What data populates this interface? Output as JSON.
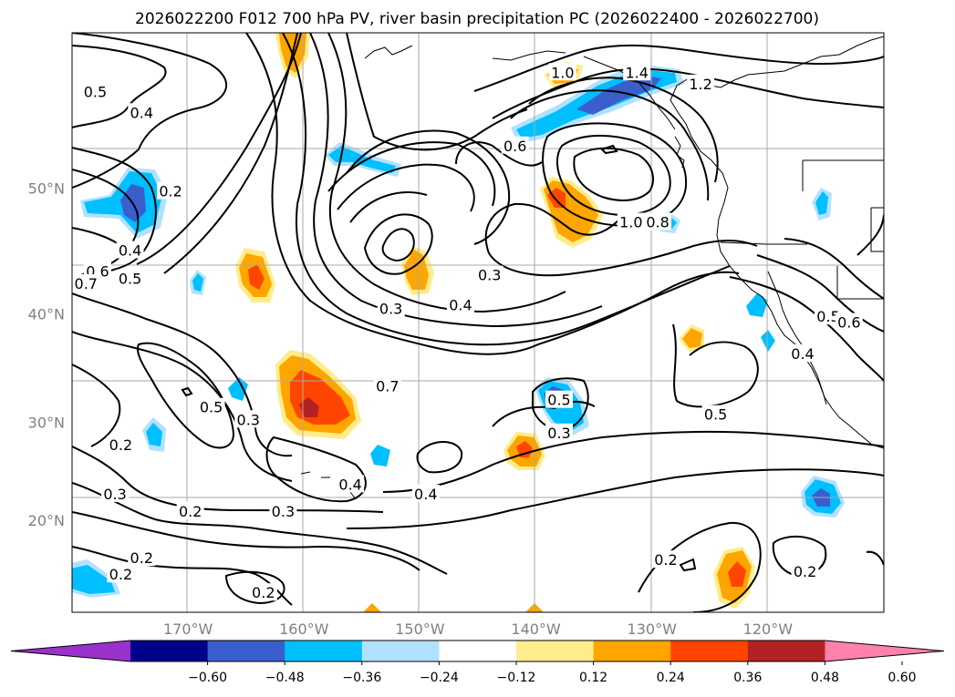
{
  "title": "2026022200 F012 700 hPa PV, river basin precipitation PC (2026022400 - 2026022700)",
  "map": {
    "projection": "Mercator",
    "lon_range": [
      -180,
      -110
    ],
    "lat_range": [
      10,
      60
    ],
    "lon_ticks": [
      {
        "lon": -170,
        "label": "170°W"
      },
      {
        "lon": -160,
        "label": "160°W"
      },
      {
        "lon": -150,
        "label": "150°W"
      },
      {
        "lon": -140,
        "label": "140°W"
      },
      {
        "lon": -130,
        "label": "130°W"
      },
      {
        "lon": -120,
        "label": "120°W"
      }
    ],
    "lat_ticks": [
      {
        "lat": 20,
        "label": "20°N"
      },
      {
        "lat": 30,
        "label": "30°N"
      },
      {
        "lat": 40,
        "label": "40°N"
      },
      {
        "lat": 50,
        "label": "50°N"
      }
    ],
    "grid": true
  },
  "contour_labels": [
    {
      "text": "0.5",
      "lon": -178.0,
      "lat": 56.5
    },
    {
      "text": "0.4",
      "lon": -174.0,
      "lat": 55.2
    },
    {
      "text": "0.2",
      "lon": -171.5,
      "lat": 49.8
    },
    {
      "text": "0.4",
      "lon": -175.0,
      "lat": 45.3
    },
    {
      "text": "0.6",
      "lon": -177.8,
      "lat": 43.6
    },
    {
      "text": "0.7",
      "lon": -178.8,
      "lat": 42.6
    },
    {
      "text": "0.5",
      "lon": -175.0,
      "lat": 43.0
    },
    {
      "text": "1.0",
      "lon": -137.7,
      "lat": 57.7
    },
    {
      "text": "1.4",
      "lon": -131.3,
      "lat": 57.7
    },
    {
      "text": "1.2",
      "lon": -125.8,
      "lat": 57.0
    },
    {
      "text": "0.6",
      "lon": -141.8,
      "lat": 53.0
    },
    {
      "text": "1.0",
      "lon": -131.8,
      "lat": 47.5
    },
    {
      "text": "0.8",
      "lon": -129.5,
      "lat": 47.5
    },
    {
      "text": "0.3",
      "lon": -144.0,
      "lat": 43.3
    },
    {
      "text": "0.4",
      "lon": -146.5,
      "lat": 40.8
    },
    {
      "text": "0.3",
      "lon": -152.5,
      "lat": 40.5
    },
    {
      "text": "0.7",
      "lon": -152.8,
      "lat": 33.5
    },
    {
      "text": "0.5",
      "lon": -138.0,
      "lat": 32.2
    },
    {
      "text": "0.5",
      "lon": -124.5,
      "lat": 30.8
    },
    {
      "text": "0.4",
      "lon": -117.0,
      "lat": 36.5
    },
    {
      "text": "0.5",
      "lon": -114.8,
      "lat": 39.8
    },
    {
      "text": "0.6",
      "lon": -113.0,
      "lat": 39.3
    },
    {
      "text": "0.5",
      "lon": -168.0,
      "lat": 31.5
    },
    {
      "text": "0.3",
      "lon": -164.8,
      "lat": 30.3
    },
    {
      "text": "0.2",
      "lon": -175.8,
      "lat": 27.8
    },
    {
      "text": "0.3",
      "lon": -138.0,
      "lat": 29.0
    },
    {
      "text": "0.4",
      "lon": -156.0,
      "lat": 23.8
    },
    {
      "text": "0.4",
      "lon": -149.5,
      "lat": 22.8
    },
    {
      "text": "0.3",
      "lon": -176.3,
      "lat": 22.8
    },
    {
      "text": "0.2",
      "lon": -169.8,
      "lat": 21.0
    },
    {
      "text": "0.3",
      "lon": -161.8,
      "lat": 21.0
    },
    {
      "text": "0.2",
      "lon": -174.0,
      "lat": 16.0
    },
    {
      "text": "0.2",
      "lon": -175.8,
      "lat": 14.2
    },
    {
      "text": "0.2",
      "lon": -163.5,
      "lat": 12.2
    },
    {
      "text": "0.2",
      "lon": -128.8,
      "lat": 15.8
    },
    {
      "text": "0.2",
      "lon": -116.8,
      "lat": 14.5
    }
  ],
  "colorbar": {
    "ticks": [
      "−0.60",
      "−0.48",
      "−0.36",
      "−0.24",
      "−0.12",
      "0.12",
      "0.24",
      "0.36",
      "0.48",
      "0.60"
    ],
    "colors": [
      "#9932cc",
      "#00008b",
      "#3a5fcd",
      "#00bfff",
      "#b0e2ff",
      "#ffffff",
      "#ffec8b",
      "#ffa500",
      "#ff4500",
      "#b22222",
      "#ff82ab"
    ]
  }
}
